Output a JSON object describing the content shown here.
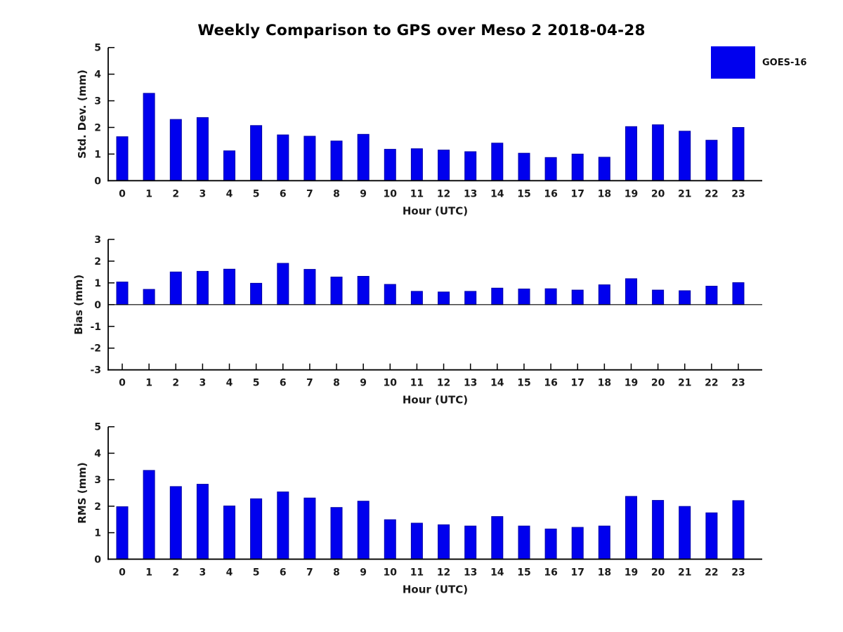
{
  "header": {
    "title": "Weekly Comparison to GPS over Meso 2 2018-04-28"
  },
  "legend": {
    "label": "GOES-16",
    "color": "#0000EE"
  },
  "colors": {
    "bar_fill": "#0000EE",
    "bar_edge": "#0000A8",
    "axis": "#000000",
    "text": "#1a1a1a"
  },
  "chart_data": [
    {
      "type": "bar",
      "id": "std-dev",
      "series_name": "GOES-16",
      "categories": [
        "0",
        "1",
        "2",
        "3",
        "4",
        "5",
        "6",
        "7",
        "8",
        "9",
        "10",
        "11",
        "12",
        "13",
        "14",
        "15",
        "16",
        "17",
        "18",
        "19",
        "20",
        "21",
        "22",
        "23"
      ],
      "values": [
        1.65,
        3.28,
        2.3,
        2.37,
        1.12,
        2.07,
        1.72,
        1.67,
        1.49,
        1.74,
        1.18,
        1.2,
        1.15,
        1.09,
        1.41,
        1.03,
        0.87,
        1.0,
        0.88,
        2.03,
        2.1,
        1.86,
        1.52,
        2.0
      ],
      "xlabel": "Hour (UTC)",
      "ylabel": "Std. Dev. (mm)",
      "ylim": [
        0,
        5
      ],
      "yticks": [
        0,
        1,
        2,
        3,
        4,
        5
      ],
      "grid": false,
      "legend_position": "top-right"
    },
    {
      "type": "bar",
      "id": "bias",
      "series_name": "GOES-16",
      "categories": [
        "0",
        "1",
        "2",
        "3",
        "4",
        "5",
        "6",
        "7",
        "8",
        "9",
        "10",
        "11",
        "12",
        "13",
        "14",
        "15",
        "16",
        "17",
        "18",
        "19",
        "20",
        "21",
        "22",
        "23"
      ],
      "values": [
        1.04,
        0.7,
        1.5,
        1.53,
        1.63,
        0.98,
        1.9,
        1.62,
        1.27,
        1.3,
        0.93,
        0.61,
        0.58,
        0.61,
        0.76,
        0.72,
        0.73,
        0.67,
        0.91,
        1.19,
        0.67,
        0.64,
        0.85,
        1.01
      ],
      "xlabel": "Hour (UTC)",
      "ylabel": "Bias (mm)",
      "ylim": [
        -3,
        3
      ],
      "yticks": [
        -3,
        -2,
        -1,
        0,
        1,
        2,
        3
      ],
      "grid": false,
      "legend_position": "none"
    },
    {
      "type": "bar",
      "id": "rms",
      "series_name": "GOES-16",
      "categories": [
        "0",
        "1",
        "2",
        "3",
        "4",
        "5",
        "6",
        "7",
        "8",
        "9",
        "10",
        "11",
        "12",
        "13",
        "14",
        "15",
        "16",
        "17",
        "18",
        "19",
        "20",
        "21",
        "22",
        "23"
      ],
      "values": [
        1.98,
        3.35,
        2.74,
        2.83,
        2.01,
        2.28,
        2.54,
        2.31,
        1.95,
        2.19,
        1.49,
        1.36,
        1.3,
        1.25,
        1.61,
        1.25,
        1.14,
        1.2,
        1.25,
        2.37,
        2.22,
        1.99,
        1.75,
        2.21
      ],
      "xlabel": "Hour (UTC)",
      "ylabel": "RMS (mm)",
      "ylim": [
        0,
        5
      ],
      "yticks": [
        0,
        1,
        2,
        3,
        4,
        5
      ],
      "grid": false,
      "legend_position": "none"
    }
  ]
}
